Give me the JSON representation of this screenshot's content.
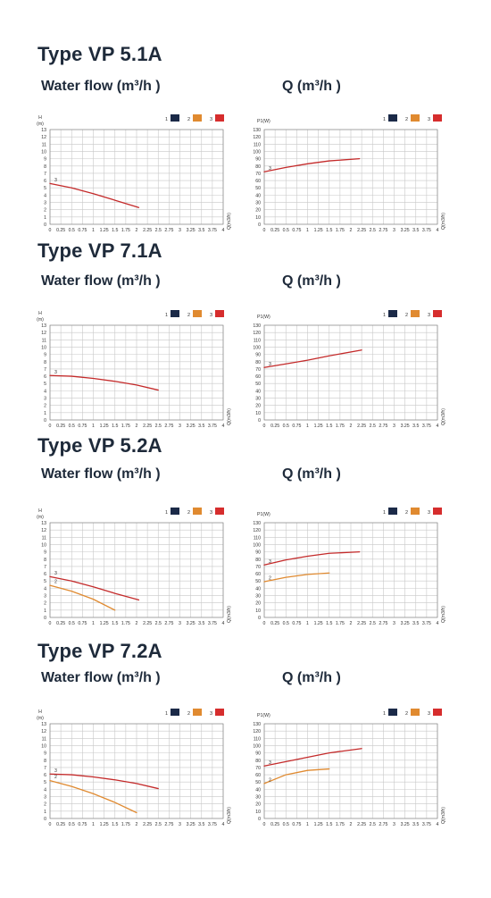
{
  "sections": [
    {
      "title": "Type VP 5.1A",
      "left_caption": "Water flow (m³/h )",
      "right_caption": "Q (m³/h )"
    },
    {
      "title": "Type VP 7.1A",
      "left_caption": "Water flow (m³/h )",
      "right_caption": "Q (m³/h )"
    },
    {
      "title": "Type VP 5.2A",
      "left_caption": "Water flow (m³/h )",
      "right_caption": "Q (m³/h )"
    },
    {
      "title": "Type VP 7.2A",
      "left_caption": "Water flow (m³/h )",
      "right_caption": "Q (m³/h )"
    }
  ],
  "legend": [
    {
      "label": "1",
      "color": "#1b2a48"
    },
    {
      "label": "2",
      "color": "#e08a30"
    },
    {
      "label": "3",
      "color": "#d62d2d"
    }
  ],
  "chart_data": [
    {
      "type": "line",
      "ylabel_top": "H",
      "ylabel_unit": "(m)",
      "xlabel": "Q(m3/h)",
      "x_ticks": [
        "0",
        "0.25",
        "0.5",
        "0.75",
        "1",
        "1.25",
        "1.5",
        "1.75",
        "2",
        "2.25",
        "2.5",
        "2.75",
        "3",
        "3.25",
        "3.5",
        "3.75",
        "4"
      ],
      "ylim": [
        0,
        13
      ],
      "xlim": [
        0,
        4
      ],
      "series": [
        {
          "name": "3",
          "color": "#c42a2a",
          "x": [
            0,
            0.5,
            1.0,
            1.5,
            2.05
          ],
          "y": [
            5.6,
            5.0,
            4.2,
            3.3,
            2.3
          ]
        }
      ]
    },
    {
      "type": "line",
      "ylabel_top": "P1(W)",
      "ylabel_unit": "",
      "xlabel": "Q(m3/h)",
      "x_ticks": [
        "0",
        "0.25",
        "0.5",
        "0.75",
        "1",
        "1.25",
        "1.5",
        "1.75",
        "2",
        "2.25",
        "2.5",
        "2.75",
        "3",
        "3.25",
        "3.5",
        "3.75",
        "4"
      ],
      "ylim": [
        0,
        130
      ],
      "xlim": [
        0,
        4
      ],
      "series": [
        {
          "name": "3",
          "color": "#c42a2a",
          "x": [
            0,
            0.5,
            1.0,
            1.5,
            2.2
          ],
          "y": [
            72,
            78,
            83,
            87,
            90
          ]
        }
      ]
    },
    {
      "type": "line",
      "ylabel_top": "H",
      "ylabel_unit": "(m)",
      "xlabel": "Q(m3/h)",
      "x_ticks": [
        "0",
        "0.25",
        "0.5",
        "0.75",
        "1",
        "1.25",
        "1.5",
        "1.75",
        "2",
        "2.25",
        "2.5",
        "2.75",
        "3",
        "3.25",
        "3.5",
        "3.75",
        "4"
      ],
      "ylim": [
        0,
        13
      ],
      "xlim": [
        0,
        4
      ],
      "series": [
        {
          "name": "3",
          "color": "#c42a2a",
          "x": [
            0,
            0.5,
            1.0,
            1.5,
            2.0,
            2.5
          ],
          "y": [
            6.1,
            6.0,
            5.7,
            5.3,
            4.8,
            4.1
          ]
        }
      ]
    },
    {
      "type": "line",
      "ylabel_top": "P1(W)",
      "ylabel_unit": "",
      "xlabel": "Q(m3/h)",
      "x_ticks": [
        "0",
        "0.25",
        "0.5",
        "0.75",
        "1",
        "1.25",
        "1.5",
        "1.75",
        "2",
        "2.25",
        "2.5",
        "2.75",
        "3",
        "3.25",
        "3.5",
        "3.75",
        "4"
      ],
      "ylim": [
        0,
        130
      ],
      "xlim": [
        0,
        4
      ],
      "series": [
        {
          "name": "3",
          "color": "#c42a2a",
          "x": [
            0,
            0.5,
            1.0,
            1.5,
            2.25
          ],
          "y": [
            72,
            77,
            82,
            88,
            96
          ]
        }
      ]
    },
    {
      "type": "line",
      "ylabel_top": "H",
      "ylabel_unit": "(m)",
      "xlabel": "Q(m3/h)",
      "x_ticks": [
        "0",
        "0.25",
        "0.5",
        "0.75",
        "1",
        "1.25",
        "1.5",
        "1.75",
        "2",
        "2.25",
        "2.5",
        "2.75",
        "3",
        "3.25",
        "3.5",
        "3.75",
        "4"
      ],
      "ylim": [
        0,
        13
      ],
      "xlim": [
        0,
        4
      ],
      "series": [
        {
          "name": "3",
          "color": "#c42a2a",
          "x": [
            0,
            0.5,
            1.0,
            1.5,
            2.05
          ],
          "y": [
            5.6,
            5.0,
            4.2,
            3.3,
            2.4
          ]
        },
        {
          "name": "2",
          "color": "#e08a30",
          "x": [
            0,
            0.5,
            1.0,
            1.5
          ],
          "y": [
            4.4,
            3.6,
            2.5,
            1.0
          ]
        }
      ]
    },
    {
      "type": "line",
      "ylabel_top": "P1(W)",
      "ylabel_unit": "",
      "xlabel": "Q(m3/h)",
      "x_ticks": [
        "0",
        "0.25",
        "0.5",
        "0.75",
        "1",
        "1.25",
        "1.5",
        "1.75",
        "2",
        "2.25",
        "2.5",
        "2.75",
        "3",
        "3.25",
        "3.5",
        "3.75",
        "4"
      ],
      "ylim": [
        0,
        130
      ],
      "xlim": [
        0,
        4
      ],
      "series": [
        {
          "name": "3",
          "color": "#c42a2a",
          "x": [
            0,
            0.5,
            1.0,
            1.5,
            2.2
          ],
          "y": [
            72,
            79,
            84,
            88,
            90
          ]
        },
        {
          "name": "2",
          "color": "#e08a30",
          "x": [
            0,
            0.5,
            1.0,
            1.5
          ],
          "y": [
            49,
            55,
            59,
            61
          ]
        }
      ]
    },
    {
      "type": "line",
      "ylabel_top": "H",
      "ylabel_unit": "(m)",
      "xlabel": "Q(m3/h)",
      "x_ticks": [
        "0",
        "0.25",
        "0.5",
        "0.75",
        "1",
        "1.25",
        "1.5",
        "1.75",
        "2",
        "2.25",
        "2.5",
        "2.75",
        "3",
        "3.25",
        "3.5",
        "3.75",
        "4"
      ],
      "ylim": [
        0,
        13
      ],
      "xlim": [
        0,
        4
      ],
      "series": [
        {
          "name": "3",
          "color": "#c42a2a",
          "x": [
            0,
            0.5,
            1.0,
            1.5,
            2.0,
            2.5
          ],
          "y": [
            6.1,
            6.0,
            5.7,
            5.3,
            4.8,
            4.1
          ]
        },
        {
          "name": "2",
          "color": "#e08a30",
          "x": [
            0,
            0.5,
            1.0,
            1.5,
            2.0
          ],
          "y": [
            5.2,
            4.4,
            3.4,
            2.2,
            0.8
          ]
        }
      ]
    },
    {
      "type": "line",
      "ylabel_top": "P1(W)",
      "ylabel_unit": "",
      "xlabel": "Q(m3/h)",
      "x_ticks": [
        "0",
        "0.25",
        "0.5",
        "0.75",
        "1",
        "1.25",
        "1.5",
        "1.75",
        "2",
        "2.25",
        "2.5",
        "2.75",
        "3",
        "3.25",
        "3.5",
        "3.75",
        "4"
      ],
      "ylim": [
        0,
        130
      ],
      "xlim": [
        0,
        4
      ],
      "series": [
        {
          "name": "3",
          "color": "#c42a2a",
          "x": [
            0,
            0.5,
            1.0,
            1.5,
            2.25
          ],
          "y": [
            72,
            78,
            84,
            90,
            96
          ]
        },
        {
          "name": "2",
          "color": "#e08a30",
          "x": [
            0,
            0.5,
            1.0,
            1.5
          ],
          "y": [
            48,
            60,
            66,
            68
          ]
        }
      ]
    }
  ]
}
